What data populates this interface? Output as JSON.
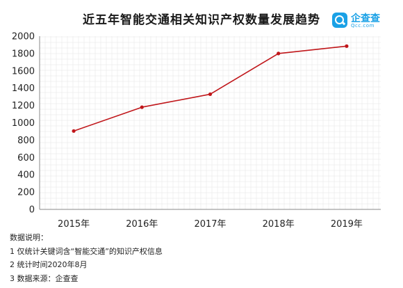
{
  "title": "近五年智能交通相关知识产权数量发展趋势",
  "logo": {
    "name": "企查查",
    "domain": "Qcc.com",
    "color": "#1aa1e6"
  },
  "chart_data": {
    "type": "line",
    "title": "近五年智能交通相关知识产权数量发展趋势",
    "xlabel": "",
    "ylabel": "",
    "categories": [
      "2015年",
      "2016年",
      "2017年",
      "2018年",
      "2019年"
    ],
    "series": [
      {
        "values": [
          905,
          1180,
          1330,
          1800,
          1885
        ],
        "color": "#c0161a"
      }
    ],
    "ylim": [
      0,
      2000
    ],
    "yticks": [
      0,
      200,
      400,
      600,
      800,
      1000,
      1200,
      1400,
      1600,
      1800,
      2000
    ],
    "grid": true
  },
  "notes": {
    "heading": "数据说明：",
    "lines": [
      "1 仅统计关键词含“智能交通”的知识产权信息",
      "2 统计时间2020年8月",
      "3 数据来源：企查查"
    ]
  }
}
